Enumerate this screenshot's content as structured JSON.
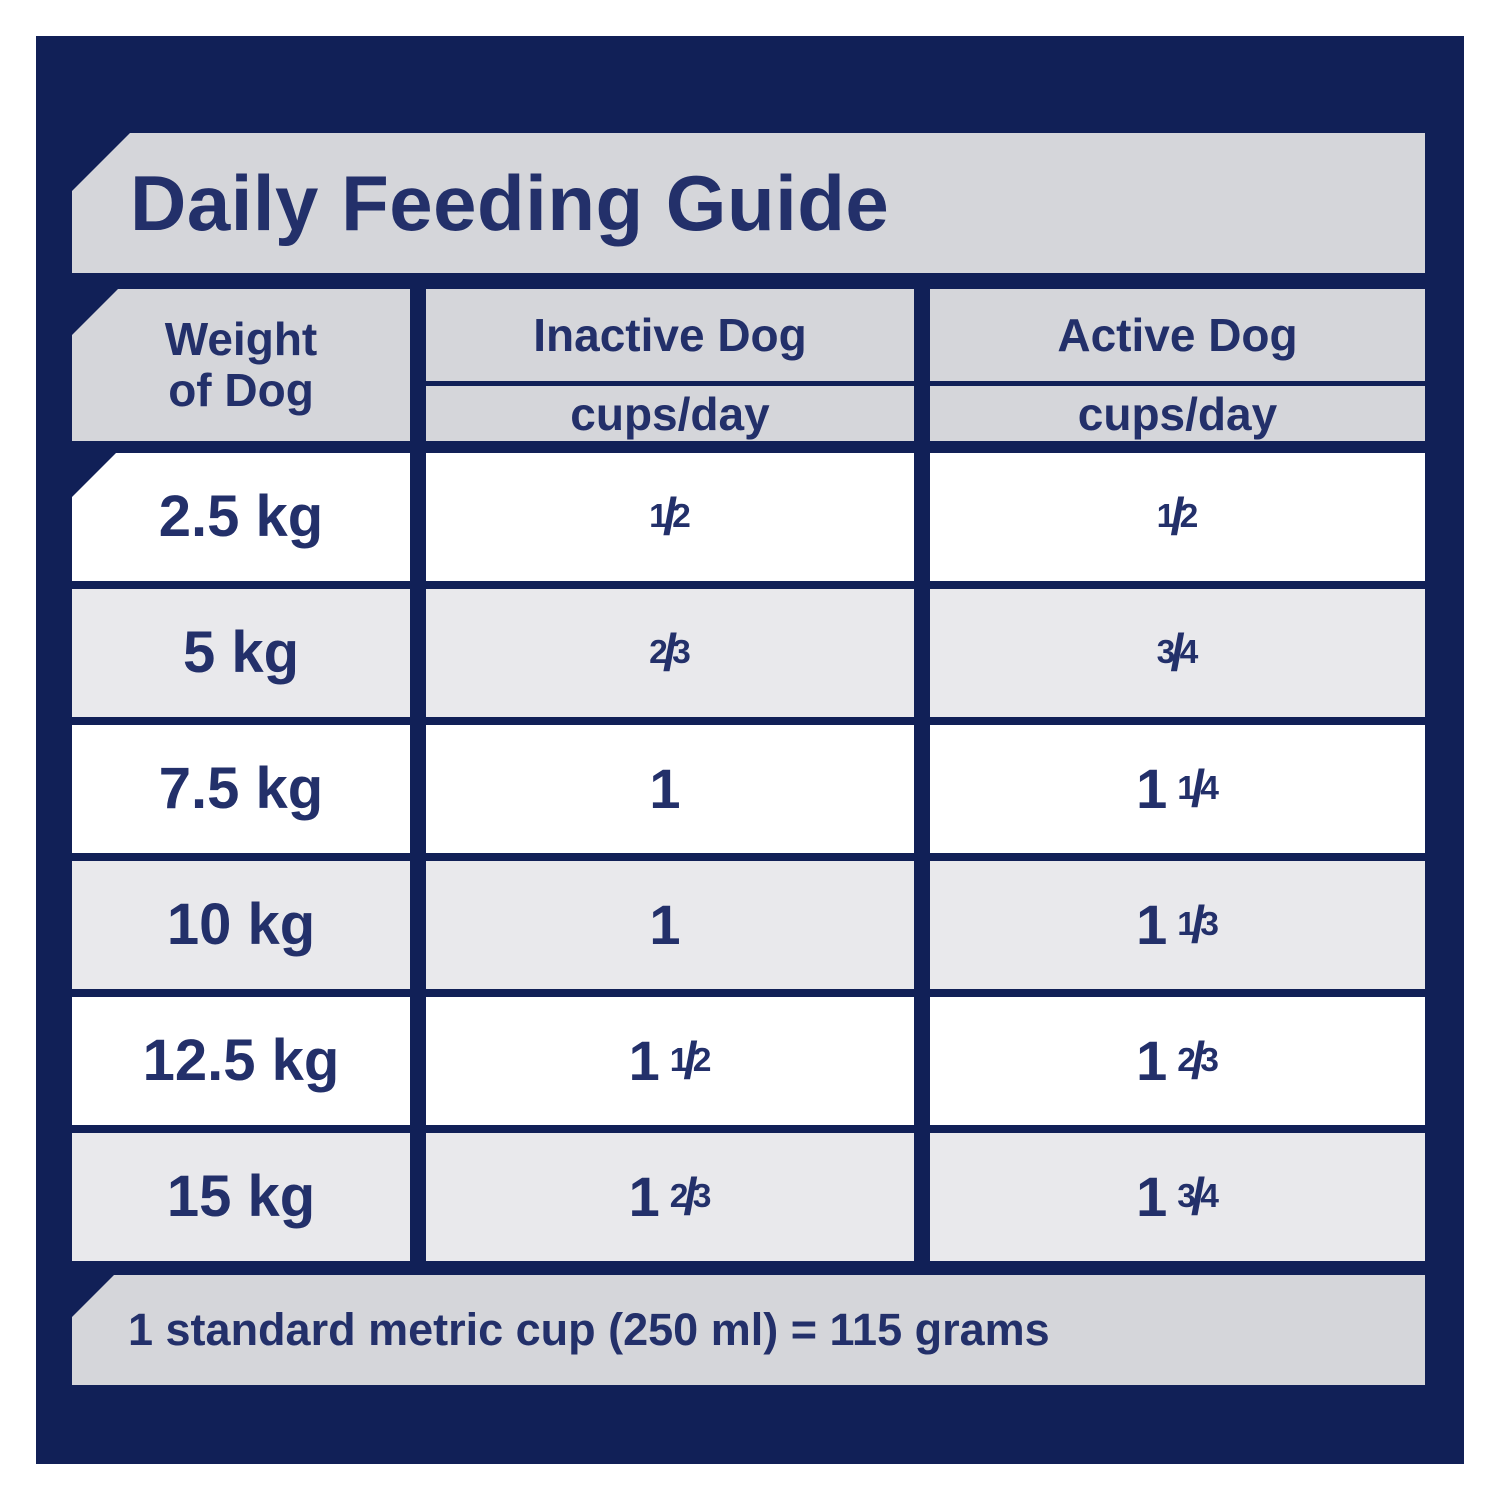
{
  "title": "Daily Feeding Guide",
  "columns": {
    "weight": {
      "line1": "Weight",
      "line2": "of Dog"
    },
    "inactive": {
      "title": "Inactive Dog",
      "unit": "cups/day"
    },
    "active": {
      "title": "Active Dog",
      "unit": "cups/day"
    }
  },
  "rows": [
    {
      "weight": "2.5 kg",
      "inactive": {
        "n": "1",
        "s": "/",
        "d": "2"
      },
      "active": {
        "n": "1",
        "s": "/",
        "d": "2"
      }
    },
    {
      "weight": "5 kg",
      "inactive": {
        "n": "2",
        "s": "/",
        "d": "3"
      },
      "active": {
        "n": "3",
        "s": "/",
        "d": "4"
      }
    },
    {
      "weight": "7.5 kg",
      "inactive": {
        "w": "1"
      },
      "active": {
        "w": "1",
        "n": "1",
        "s": "/",
        "d": "4"
      }
    },
    {
      "weight": "10 kg",
      "inactive": {
        "w": "1"
      },
      "active": {
        "w": "1",
        "n": "1",
        "s": "/",
        "d": "3"
      }
    },
    {
      "weight": "12.5 kg",
      "inactive": {
        "w": "1",
        "n": "1",
        "s": "/",
        "d": "2"
      },
      "active": {
        "w": "1",
        "n": "2",
        "s": "/",
        "d": "3"
      }
    },
    {
      "weight": "15 kg",
      "inactive": {
        "w": "1",
        "n": "2",
        "s": "/",
        "d": "3"
      },
      "active": {
        "w": "1",
        "n": "3",
        "s": "/",
        "d": "4"
      }
    }
  ],
  "note": "1 standard metric cup (250 ml) = 115 grams",
  "colors": {
    "navy": "#112057",
    "band_gray": "#d5d6da",
    "row_alt_gray": "#e9e9ec",
    "row_white": "#ffffff",
    "text_navy": "#23306a"
  },
  "chart_data": {
    "type": "table",
    "title": "Daily Feeding Guide",
    "columns": [
      "Weight of Dog",
      "Inactive Dog cups/day",
      "Active Dog cups/day"
    ],
    "rows": [
      [
        "2.5 kg",
        "1/2",
        "1/2"
      ],
      [
        "5 kg",
        "2/3",
        "3/4"
      ],
      [
        "7.5 kg",
        "1",
        "1 1/4"
      ],
      [
        "10 kg",
        "1",
        "1 1/3"
      ],
      [
        "12.5 kg",
        "1 1/2",
        "1 2/3"
      ],
      [
        "15 kg",
        "1 2/3",
        "1 3/4"
      ]
    ],
    "footnote": "1 standard metric cup (250 ml) = 115 grams"
  }
}
